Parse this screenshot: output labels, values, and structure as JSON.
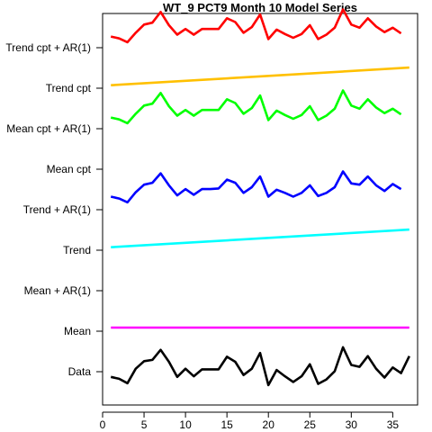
{
  "chart_data": {
    "type": "line",
    "title": "WT_9 PCT9 Month 10 Model Series",
    "xlabel": "",
    "ylabel": "",
    "x_ticks": [
      0,
      5,
      10,
      15,
      20,
      25,
      30,
      35
    ],
    "xlim": [
      0,
      38
    ],
    "grid": false,
    "legend": "none",
    "row_labels": [
      "Data",
      "Mean",
      "Mean + AR(1)",
      "Trend",
      "Trend + AR(1)",
      "Mean cpt",
      "Mean cpt + AR(1)",
      "Trend cpt",
      "Trend cpt + AR(1)"
    ],
    "series": [
      {
        "row": 0,
        "color": "#000000",
        "x": [
          1,
          2,
          3,
          4,
          5,
          6,
          7,
          8,
          9,
          10,
          11,
          12,
          13,
          14,
          15,
          16,
          17,
          18,
          19,
          20,
          21,
          22,
          23,
          24,
          25,
          26,
          27,
          28,
          29,
          30,
          31,
          32,
          33,
          34,
          35,
          36,
          37
        ],
        "values": [
          0.3,
          0.15,
          -0.2,
          0.95,
          1.55,
          1.65,
          2.45,
          1.5,
          0.3,
          0.95,
          0.35,
          0.9,
          0.9,
          0.9,
          1.9,
          1.5,
          0.45,
          0.95,
          2.2,
          -0.35,
          0.85,
          0.35,
          -0.1,
          0.35,
          1.3,
          -0.25,
          0.1,
          0.75,
          2.65,
          1.25,
          1.1,
          1.95,
          0.95,
          0.25,
          1.05,
          0.6,
          1.95
        ]
      },
      {
        "row": 1,
        "color": "#ff00ff",
        "x": [
          1,
          37
        ],
        "values": [
          1,
          1
        ]
      },
      {
        "row": 3,
        "color": "#00ffff",
        "x": [
          1,
          37
        ],
        "values": [
          0.95,
          2.35
        ]
      },
      {
        "row": 4,
        "color": "#0000ff",
        "x": [
          1,
          2,
          3,
          4,
          5,
          6,
          7,
          8,
          9,
          10,
          11,
          12,
          13,
          14,
          15,
          16,
          17,
          18,
          19,
          20,
          21,
          22,
          23,
          24,
          25,
          26,
          27,
          28,
          29,
          30,
          31,
          32,
          33,
          34,
          35,
          36
        ],
        "values": [
          1.75,
          1.6,
          1.3,
          2.1,
          2.7,
          2.85,
          3.6,
          2.65,
          1.85,
          2.35,
          1.9,
          2.35,
          2.35,
          2.4,
          3.1,
          2.85,
          2.05,
          2.5,
          3.35,
          1.75,
          2.3,
          2.05,
          1.75,
          2.05,
          2.65,
          1.8,
          2.05,
          2.5,
          3.75,
          2.8,
          2.7,
          3.35,
          2.65,
          2.2,
          2.75,
          2.35
        ]
      },
      {
        "row": 6,
        "color": "#00ff00",
        "x": [
          1,
          2,
          3,
          4,
          5,
          6,
          7,
          8,
          9,
          10,
          11,
          12,
          13,
          14,
          15,
          16,
          17,
          18,
          19,
          20,
          21,
          22,
          23,
          24,
          25,
          26,
          27,
          28,
          29,
          30,
          31,
          32,
          33,
          34,
          35,
          36
        ],
        "values": [
          1.6,
          1.45,
          1.15,
          1.9,
          2.55,
          2.7,
          3.55,
          2.5,
          1.75,
          2.2,
          1.75,
          2.2,
          2.2,
          2.2,
          3.05,
          2.75,
          1.9,
          2.35,
          3.35,
          1.4,
          2.15,
          1.8,
          1.5,
          1.8,
          2.5,
          1.4,
          1.75,
          2.3,
          3.75,
          2.55,
          2.3,
          3.05,
          2.4,
          1.95,
          2.3,
          1.85
        ]
      },
      {
        "row": 7,
        "color": "#ffc000",
        "x": [
          1,
          37
        ],
        "values": [
          0.95,
          2.35
        ]
      },
      {
        "row": 8,
        "color": "#ff0000",
        "x": [
          1,
          2,
          3,
          4,
          5,
          6,
          7,
          8,
          9,
          10,
          11,
          12,
          13,
          14,
          15,
          16,
          17,
          18,
          19,
          20,
          21,
          22,
          23,
          24,
          25,
          26,
          27,
          28,
          29,
          30,
          31,
          32,
          33,
          34,
          35,
          36
        ],
        "values": [
          1.6,
          1.45,
          1.15,
          1.9,
          2.55,
          2.7,
          3.55,
          2.5,
          1.75,
          2.2,
          1.75,
          2.2,
          2.2,
          2.2,
          3.05,
          2.75,
          1.9,
          2.35,
          3.35,
          1.4,
          2.15,
          1.8,
          1.5,
          1.8,
          2.5,
          1.4,
          1.75,
          2.3,
          3.75,
          2.55,
          2.3,
          3.05,
          2.4,
          1.95,
          2.3,
          1.85
        ]
      }
    ]
  }
}
